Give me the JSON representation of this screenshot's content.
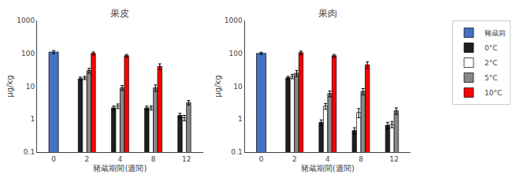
{
  "chart_data": [
    {
      "type": "bar",
      "title": "果皮",
      "xlabel": "豬蔵期間(週間)",
      "ylabel": "μg/kg",
      "categories": [
        "0",
        "2",
        "4",
        "8",
        "12"
      ],
      "log": "y",
      "ylim": [
        0.1,
        1000
      ],
      "yticks": [
        0.1,
        1,
        10,
        100,
        1000
      ],
      "grid": false,
      "series": [
        {
          "name": "豬蔵前",
          "color": "#4472c4",
          "values": [
            110,
            null,
            null,
            null,
            null
          ],
          "errors": [
            12,
            null,
            null,
            null,
            null
          ]
        },
        {
          "name": "0°C",
          "color": "#1f1f1f",
          "values": [
            null,
            17,
            2.2,
            2.2,
            1.3
          ],
          "errors": [
            null,
            2,
            0.3,
            0.3,
            0.2
          ]
        },
        {
          "name": "2°C",
          "color": "#ffffff",
          "values": [
            null,
            18,
            2.5,
            2.2,
            1.1
          ],
          "errors": [
            null,
            2,
            0.4,
            0.3,
            0.2
          ]
        },
        {
          "name": "5°C",
          "color": "#888888",
          "values": [
            null,
            30,
            9,
            9,
            3.2
          ],
          "errors": [
            null,
            5,
            1.5,
            2,
            0.5
          ]
        },
        {
          "name": "10°C",
          "color": "#ff0000",
          "values": [
            null,
            100,
            85,
            40,
            null
          ],
          "errors": [
            null,
            10,
            8,
            8,
            null
          ]
        }
      ]
    },
    {
      "type": "bar",
      "title": "果肉",
      "xlabel": "豬蔵期間(週間)",
      "ylabel": "μg/kg",
      "categories": [
        "0",
        "2",
        "4",
        "8",
        "12"
      ],
      "log": "y",
      "ylim": [
        0.1,
        1000
      ],
      "yticks": [
        0.1,
        1,
        10,
        100,
        1000
      ],
      "grid": false,
      "legend": "right",
      "series": [
        {
          "name": "豬蔵前",
          "color": "#4472c4",
          "values": [
            100,
            null,
            null,
            null,
            null
          ],
          "errors": [
            8,
            null,
            null,
            null,
            null
          ]
        },
        {
          "name": "0°C",
          "color": "#1f1f1f",
          "values": [
            null,
            18,
            0.8,
            0.45,
            0.65
          ],
          "errors": [
            null,
            2,
            0.15,
            0.1,
            0.15
          ]
        },
        {
          "name": "2°C",
          "color": "#ffffff",
          "values": [
            null,
            20,
            2.5,
            1.6,
            0.7
          ],
          "errors": [
            null,
            3,
            0.5,
            0.5,
            0.15
          ]
        },
        {
          "name": "5°C",
          "color": "#888888",
          "values": [
            null,
            25,
            6,
            7,
            1.8
          ],
          "errors": [
            null,
            5,
            1.2,
            1.5,
            0.4
          ]
        },
        {
          "name": "10°C",
          "color": "#ff0000",
          "values": [
            null,
            105,
            85,
            45,
            null
          ],
          "errors": [
            null,
            12,
            8,
            10,
            null
          ]
        }
      ]
    }
  ]
}
